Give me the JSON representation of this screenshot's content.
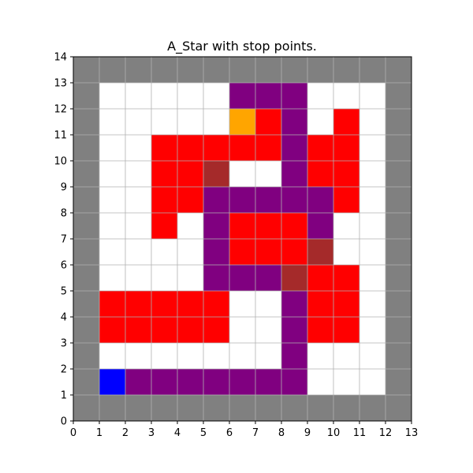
{
  "chart_data": {
    "type": "heatmap",
    "title": "A_Star with stop points.",
    "xlabel": "",
    "ylabel": "",
    "xlim": [
      0,
      13
    ],
    "ylim": [
      0,
      14
    ],
    "xticks": [
      "0",
      "1",
      "2",
      "3",
      "4",
      "5",
      "6",
      "7",
      "8",
      "9",
      "10",
      "11",
      "12",
      "13"
    ],
    "yticks": [
      "0",
      "1",
      "2",
      "3",
      "4",
      "5",
      "6",
      "7",
      "8",
      "9",
      "10",
      "11",
      "12",
      "13",
      "14"
    ],
    "grid": true,
    "colors": {
      "W": "#ffffff",
      "G": "#808080",
      "R": "#ff0000",
      "P": "#800080",
      "B": "#a52a2a",
      "O": "#ffa500",
      "U": "#0000ff"
    },
    "legend_map": {
      "W": "free",
      "G": "wall",
      "R": "visited",
      "P": "path",
      "B": "stop point",
      "O": "goal",
      "U": "start"
    },
    "rows_top_to_bottom": [
      "GGGGGGGGGGGGG",
      "GWWWWWPPPWWWG",
      "GWWWWWORPWRWG",
      "GWWRRRRRPRRWG",
      "GWWRRBWWPRRWG",
      "GWWRRPPPPPRWG",
      "GWWRWPRRRPWWG",
      "GWWWWPRRRBWWG",
      "GWWWWPPPBRRWG",
      "GRRRRRWWPRRWG",
      "GRRRRRWWPRRWG",
      "GWWWWWWWPWWWG",
      "GUPPPPPPPWWWG",
      "GGGGGGGGGGGGG"
    ]
  }
}
